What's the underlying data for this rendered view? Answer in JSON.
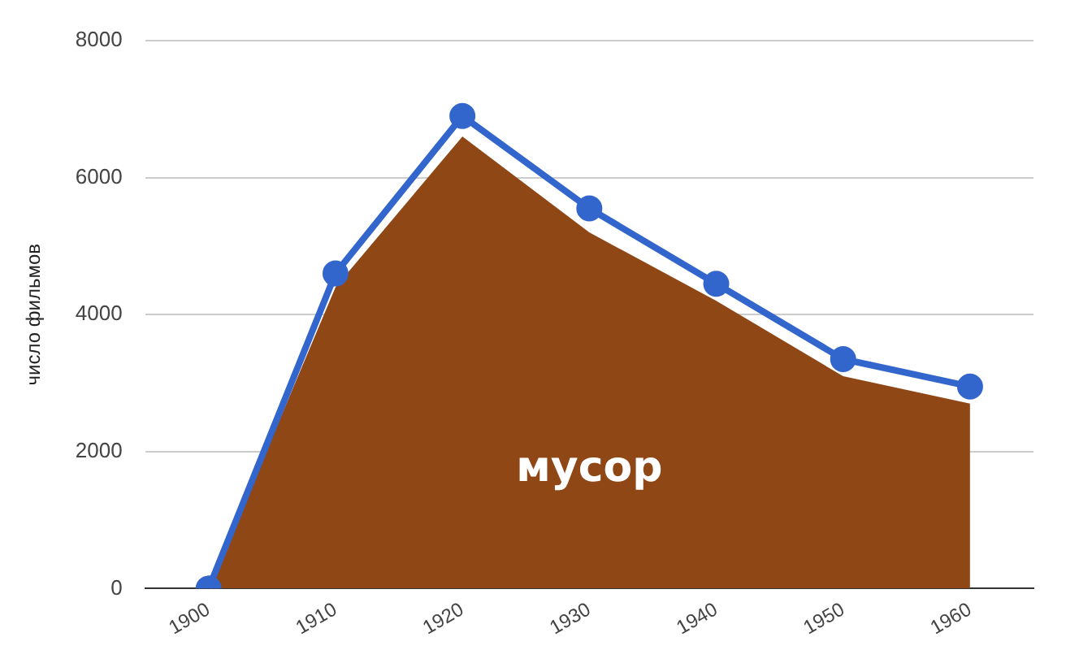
{
  "chart_data": {
    "type": "line",
    "ylabel": "число фильмов",
    "categories": [
      "1900",
      "1910",
      "1920",
      "1930",
      "1940",
      "1950",
      "1960"
    ],
    "series": [
      {
        "type": "area",
        "name": "мусор",
        "color": "#8f4716",
        "marker": "none",
        "values": [
          0,
          4400,
          6600,
          5200,
          4200,
          3100,
          2700
        ]
      },
      {
        "type": "line",
        "color": "#3366cc",
        "marker": "circle",
        "values": [
          0,
          4600,
          6900,
          5550,
          4450,
          3350,
          2950
        ]
      }
    ],
    "ylim": [
      0,
      8000
    ],
    "yticks": [
      0,
      2000,
      4000,
      6000,
      8000
    ],
    "grid": "y"
  }
}
